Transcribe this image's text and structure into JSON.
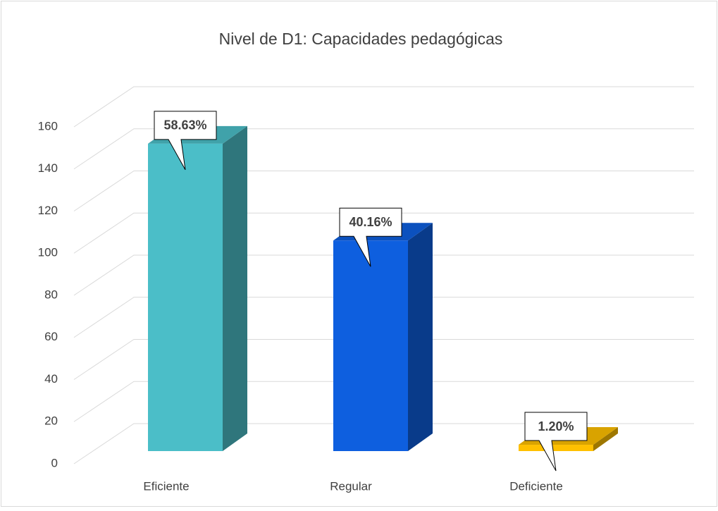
{
  "chart_data": {
    "type": "bar3d",
    "title": "Nivel de D1: Capacidades pedagógicas",
    "categories": [
      "Eficiente",
      "Regular",
      "Deficiente"
    ],
    "values": [
      146,
      100,
      3
    ],
    "value_labels": [
      "58.63%",
      "40.16%",
      "1.20%"
    ],
    "colors": [
      "#4BBEC8",
      "#0E5FDF",
      "#FFC000"
    ],
    "ylim": [
      0,
      160
    ],
    "yticks": [
      0,
      20,
      40,
      60,
      80,
      100,
      120,
      140,
      160
    ],
    "grid": true
  }
}
